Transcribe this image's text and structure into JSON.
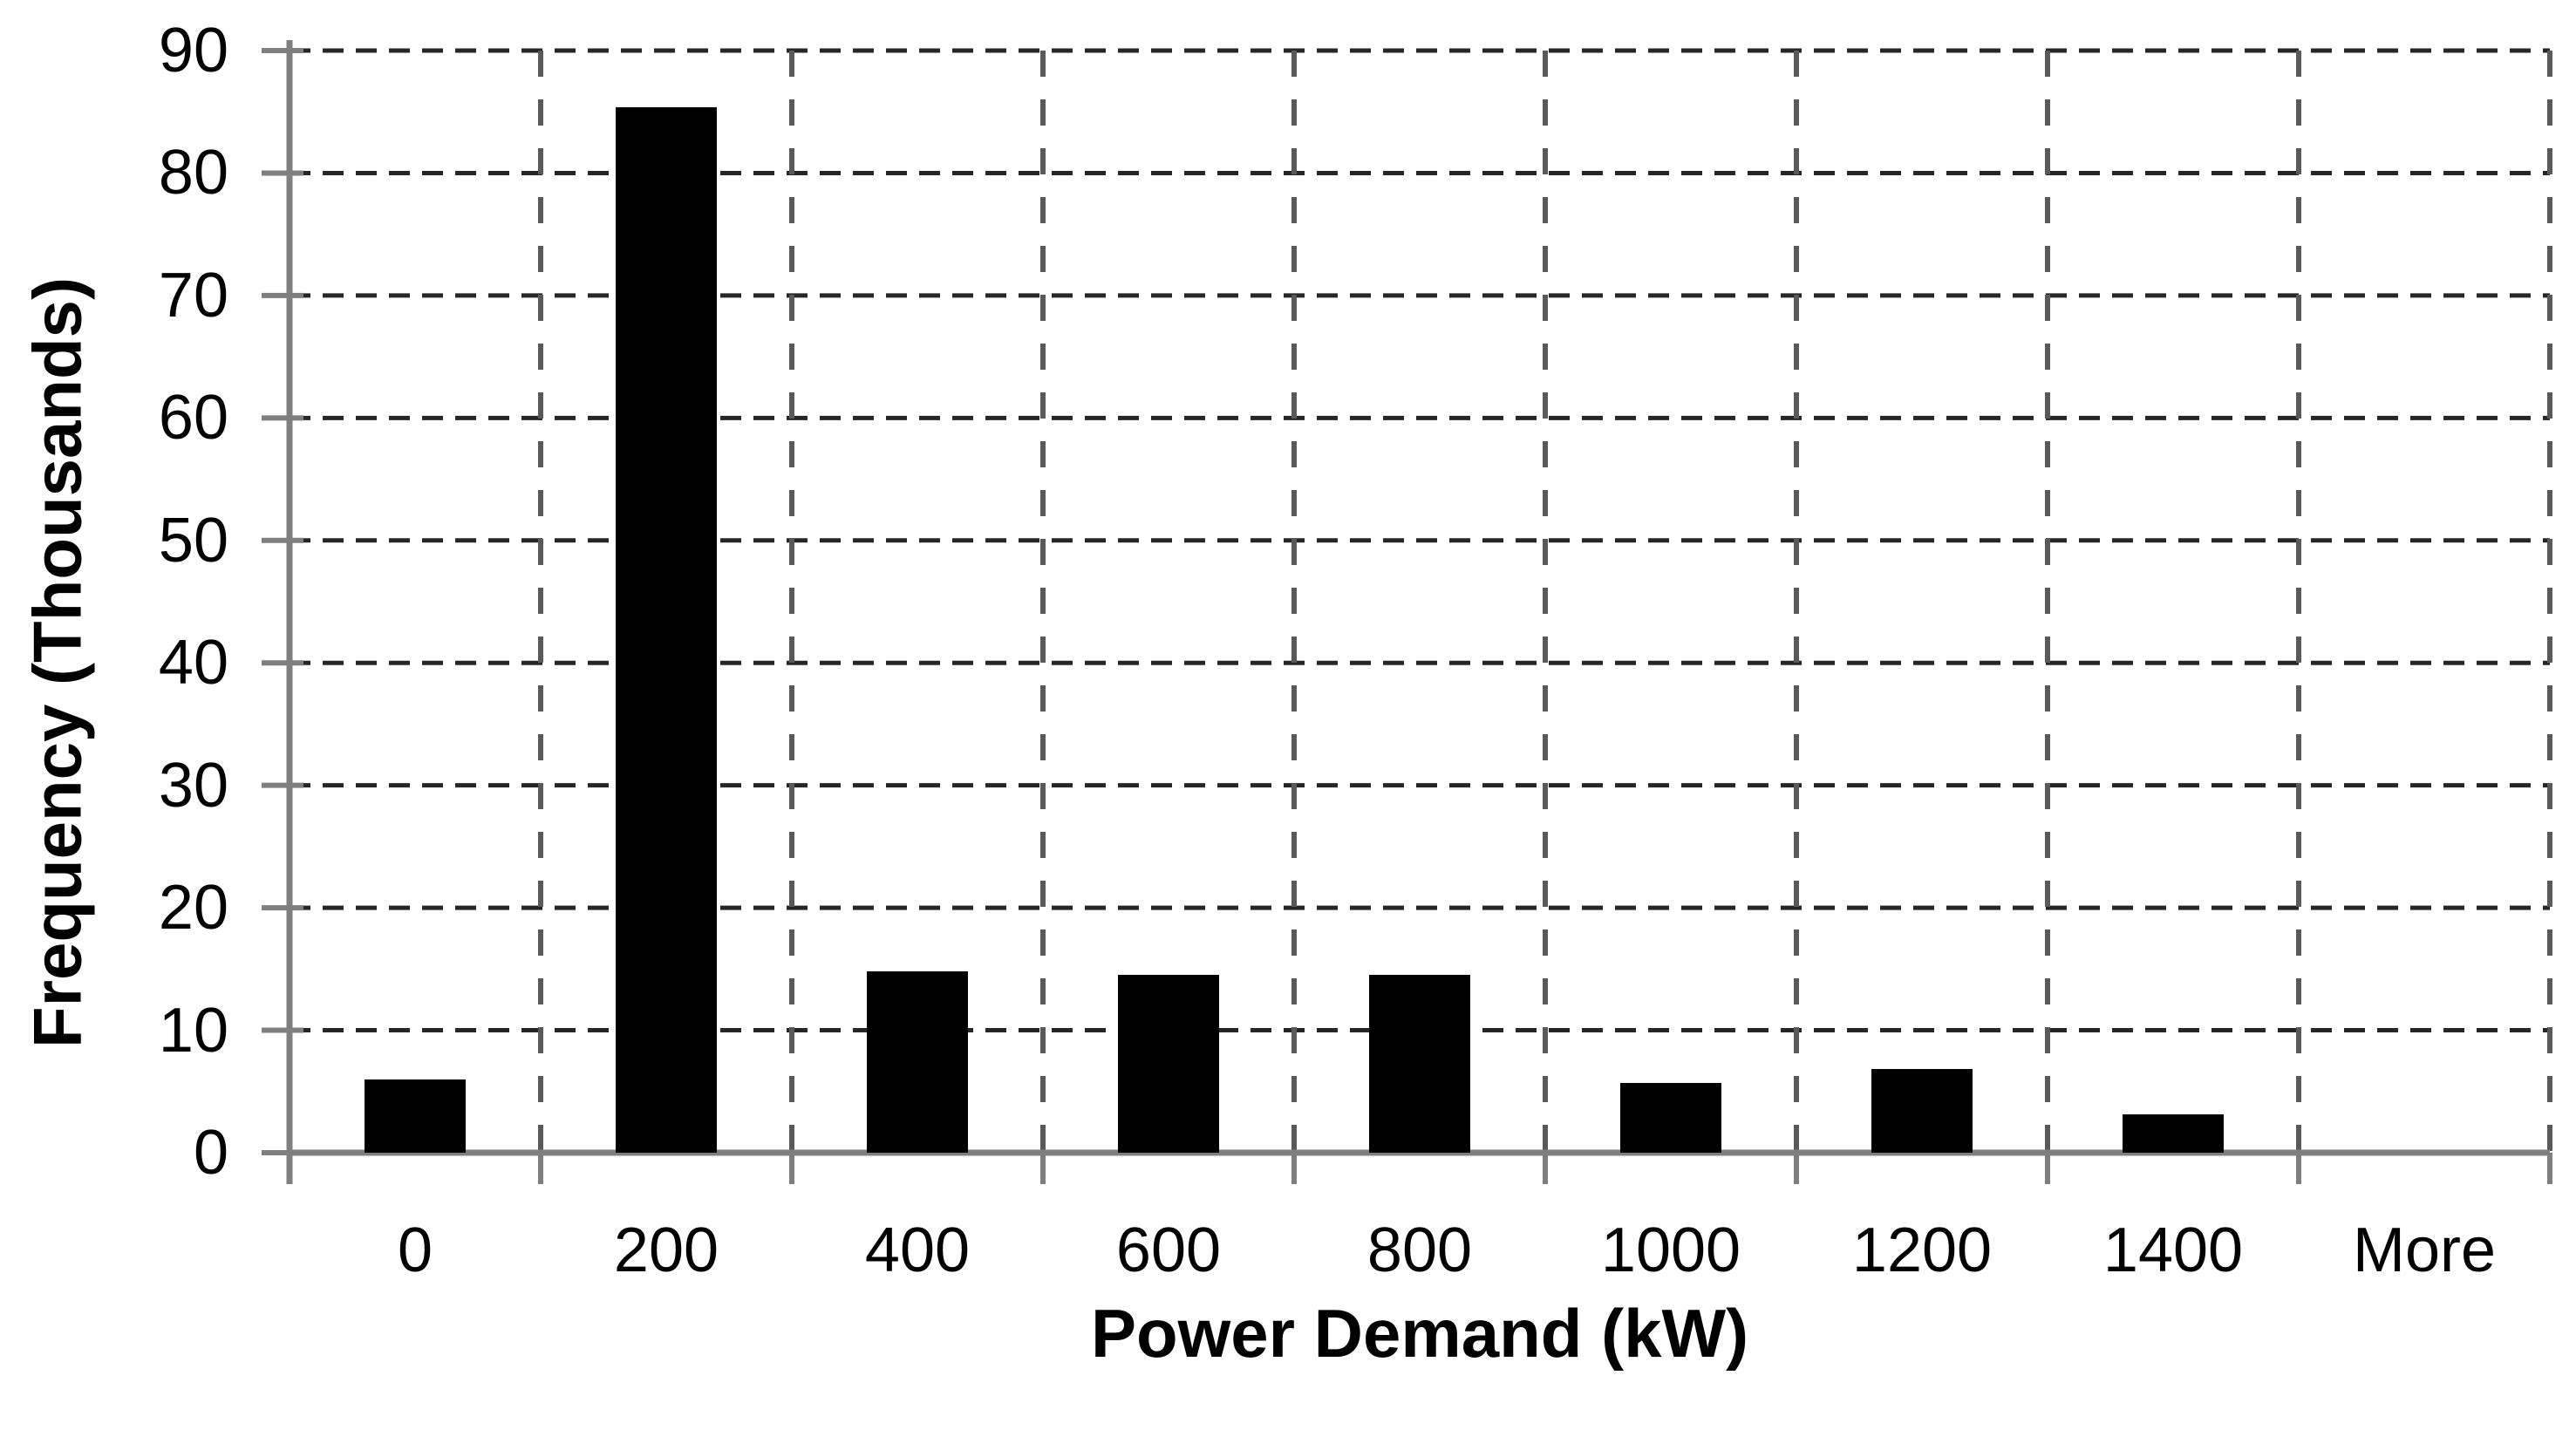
{
  "chart_data": {
    "type": "bar",
    "title": "",
    "categories": [
      "0",
      "200",
      "400",
      "600",
      "800",
      "1000",
      "1200",
      "1400",
      "More"
    ],
    "values": [
      6,
      85.4,
      14.8,
      14.5,
      14.5,
      5.7,
      6.8,
      3.1,
      0
    ],
    "series_name": "Frequency",
    "xlabel": "Power Demand (kW)",
    "ylabel": "Frequency (Thousands)",
    "ylim": [
      0,
      90
    ],
    "yticks": [
      0,
      10,
      20,
      30,
      40,
      50,
      60,
      70,
      80,
      90
    ],
    "legend_position": "none",
    "grid": {
      "horizontal": "dashed",
      "vertical": "dashed"
    },
    "colors": {
      "bar": "#000000",
      "axis_line": "#7f7f7f",
      "h_gridline": "#262626",
      "v_gridline": "#595959",
      "text": "#000000",
      "background": "#ffffff"
    }
  }
}
